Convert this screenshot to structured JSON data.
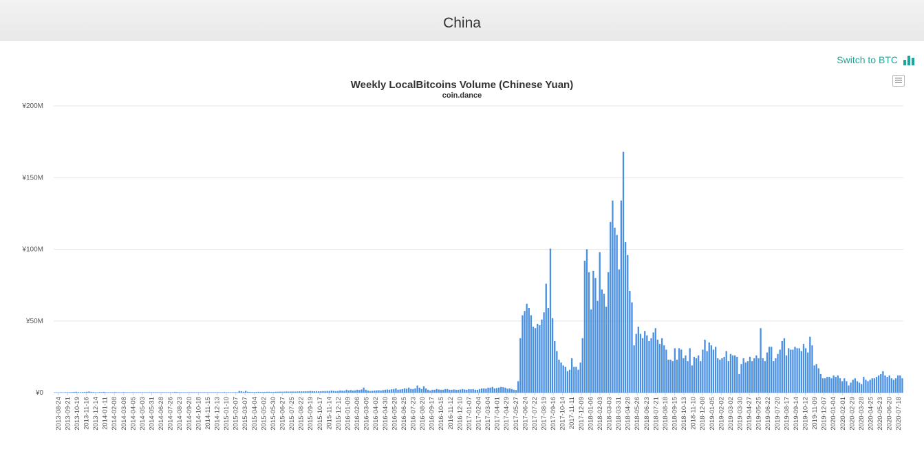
{
  "header": {
    "title": "China"
  },
  "toolbar": {
    "switch_label": "Switch to BTC",
    "switch_icon": "bar-chart-icon",
    "menu_icon": "hamburger-menu-icon"
  },
  "colors": {
    "accent": "#1aa69a",
    "bar": "#4a90e2",
    "grid": "#e6e6e6"
  },
  "chart_data": {
    "type": "bar",
    "title": "Weekly LocalBitcoins Volume (Chinese Yuan)",
    "subtitle": "coin.dance",
    "ylim": [
      0,
      200
    ],
    "y_unit": "millions CNY",
    "y_tick_values": [
      0,
      50,
      100,
      150,
      200
    ],
    "y_tick_labels": [
      "¥0",
      "¥50M",
      "¥100M",
      "¥150M",
      "¥200M"
    ],
    "x_start": "2013-08-24",
    "x_end": "2020-07-18",
    "x_tick_labels": [
      "2013-08-24",
      "2013-09-21",
      "2013-10-19",
      "2013-11-16",
      "2013-12-14",
      "2014-01-11",
      "2014-02-08",
      "2014-03-08",
      "2014-04-05",
      "2014-05-03",
      "2014-05-31",
      "2014-06-28",
      "2014-07-26",
      "2014-08-23",
      "2014-09-20",
      "2014-10-18",
      "2014-11-15",
      "2014-12-13",
      "2015-01-10",
      "2015-02-07",
      "2015-03-07",
      "2015-04-04",
      "2015-05-02",
      "2015-05-30",
      "2015-06-27",
      "2015-07-25",
      "2015-08-22",
      "2015-09-19",
      "2015-10-17",
      "2015-11-14",
      "2015-12-12",
      "2016-01-09",
      "2016-02-06",
      "2016-03-05",
      "2016-04-02",
      "2016-04-30",
      "2016-05-28",
      "2016-06-25",
      "2016-07-23",
      "2016-08-20",
      "2016-09-17",
      "2016-10-15",
      "2016-11-12",
      "2016-12-10",
      "2017-01-07",
      "2017-02-04",
      "2017-03-04",
      "2017-04-01",
      "2017-04-29",
      "2017-05-27",
      "2017-06-24",
      "2017-07-22",
      "2017-08-19",
      "2017-09-16",
      "2017-10-14",
      "2017-11-11",
      "2017-12-09",
      "2018-01-06",
      "2018-02-03",
      "2018-03-03",
      "2018-03-31",
      "2018-04-28",
      "2018-05-26",
      "2018-06-23",
      "2018-07-21",
      "2018-08-18",
      "2018-09-15",
      "2018-10-13",
      "2018-11-10",
      "2018-12-08",
      "2019-01-05",
      "2019-02-02",
      "2019-03-02",
      "2019-03-30",
      "2019-04-27",
      "2019-05-25",
      "2019-06-22",
      "2019-07-20",
      "2019-08-17",
      "2019-09-14",
      "2019-10-12",
      "2019-11-09",
      "2019-12-07",
      "2020-01-04",
      "2020-02-01",
      "2020-02-29",
      "2020-03-28",
      "2020-04-25",
      "2020-05-23",
      "2020-06-20",
      "2020-07-18"
    ],
    "values": [
      0.2,
      0.2,
      0.2,
      0.3,
      0.2,
      0.3,
      0.3,
      0.3,
      0.4,
      0.5,
      0.6,
      0.4,
      0.3,
      0.4,
      0.5,
      0.6,
      0.8,
      0.5,
      0.4,
      0.3,
      0.3,
      0.4,
      0.4,
      0.5,
      0.3,
      0.3,
      0.3,
      0.3,
      0.4,
      0.3,
      0.3,
      0.3,
      0.4,
      0.3,
      0.3,
      0.3,
      0.3,
      0.3,
      0.3,
      0.3,
      0.3,
      0.3,
      0.3,
      0.3,
      0.3,
      0.3,
      0.3,
      0.3,
      0.3,
      0.3,
      0.3,
      0.3,
      0.3,
      0.3,
      0.3,
      0.3,
      0.5,
      0.4,
      0.3,
      0.3,
      0.3,
      0.3,
      0.3,
      0.3,
      0.3,
      0.3,
      0.3,
      0.3,
      0.3,
      0.3,
      0.3,
      0.3,
      0.3,
      0.3,
      0.3,
      0.3,
      0.3,
      0.3,
      0.3,
      0.4,
      0.3,
      0.3,
      0.3,
      0.3,
      0.3,
      0.3,
      1.2,
      1.0,
      0.6,
      1.3,
      0.6,
      0.5,
      0.4,
      0.4,
      0.5,
      0.6,
      0.5,
      0.5,
      0.5,
      0.6,
      0.6,
      0.5,
      0.5,
      0.6,
      0.6,
      0.7,
      0.6,
      0.7,
      0.8,
      0.7,
      0.8,
      0.8,
      0.7,
      0.8,
      0.9,
      0.9,
      0.9,
      1.0,
      1.0,
      1.2,
      1.1,
      1.0,
      1.1,
      1.0,
      1.0,
      1.1,
      1.1,
      1.2,
      1.2,
      1.5,
      1.3,
      1.1,
      1.2,
      1.6,
      1.4,
      1.3,
      2.0,
      1.6,
      1.8,
      1.5,
      1.6,
      2.0,
      1.8,
      2.2,
      3.5,
      2.0,
      1.5,
      1.2,
      1.3,
      1.5,
      1.6,
      1.7,
      1.5,
      1.8,
      2.0,
      2.2,
      2.0,
      2.3,
      2.5,
      3.0,
      2.0,
      2.2,
      2.5,
      3.0,
      2.8,
      3.5,
      2.6,
      2.5,
      3.0,
      5.0,
      3.5,
      2.5,
      4.5,
      3.0,
      2.0,
      1.5,
      2.0,
      2.0,
      2.5,
      2.2,
      2.0,
      2.0,
      2.5,
      2.5,
      2.0,
      2.0,
      2.2,
      2.0,
      2.0,
      2.2,
      2.5,
      2.2,
      2.0,
      2.5,
      2.3,
      2.5,
      2.0,
      2.0,
      2.5,
      3.0,
      3.0,
      2.8,
      3.5,
      3.5,
      4.0,
      3.0,
      3.2,
      3.5,
      4.0,
      3.8,
      3.5,
      2.8,
      3.0,
      2.5,
      2.0,
      1.8,
      8.0,
      38.0,
      54.0,
      57.0,
      62.0,
      59.0,
      54.0,
      46.0,
      45.0,
      48.0,
      47.0,
      51.0,
      56.0,
      76.0,
      59.0,
      100.5,
      52.0,
      36.0,
      29.0,
      23.0,
      21.0,
      19.0,
      18.0,
      15.0,
      16.0,
      24.0,
      18.0,
      18.0,
      16.0,
      21.0,
      38.0,
      92.0,
      100.0,
      84.0,
      58.0,
      85.0,
      80.0,
      64.0,
      98.0,
      72.0,
      69.0,
      60.0,
      84.0,
      119.0,
      134.0,
      115.0,
      110.0,
      86.0,
      134.0,
      168.0,
      105.0,
      96.0,
      71.0,
      63.0,
      33.0,
      41.0,
      46.0,
      41.0,
      38.0,
      43.0,
      40.0,
      36.0,
      38.0,
      42.0,
      45.0,
      37.0,
      34.0,
      38.0,
      33.0,
      30.0,
      23.0,
      23.0,
      22.0,
      31.0,
      23.0,
      31.0,
      30.0,
      24.0,
      26.0,
      22.0,
      31.0,
      19.0,
      25.0,
      24.0,
      26.0,
      22.0,
      30.0,
      37.0,
      29.0,
      35.0,
      33.0,
      30.0,
      32.0,
      24.0,
      23.0,
      24.0,
      25.0,
      29.0,
      22.0,
      27.0,
      26.0,
      26.0,
      25.0,
      13.0,
      20.0,
      24.0,
      21.0,
      22.0,
      25.0,
      22.0,
      24.0,
      26.0,
      24.0,
      45.0,
      24.0,
      22.0,
      28.0,
      32.0,
      32.0,
      22.0,
      24.0,
      27.0,
      30.0,
      36.0,
      38.0,
      26.0,
      31.0,
      30.0,
      30.0,
      32.0,
      31.0,
      31.0,
      29.0,
      34.0,
      31.0,
      28.0,
      39.0,
      33.0,
      19.0,
      20.0,
      17.0,
      13.0,
      10.0,
      10.0,
      11.0,
      11.0,
      10.0,
      12.0,
      11.0,
      12.0,
      10.0,
      8.0,
      10.0,
      8.0,
      5.0,
      7.0,
      9.0,
      10.0,
      8.0,
      7.0,
      6.0,
      11.0,
      9.0,
      8.0,
      9.0,
      10.0,
      10.0,
      11.0,
      12.0,
      13.0,
      15.0,
      12.0,
      11.0,
      12.0,
      10.0,
      9.0,
      10.0,
      12.0,
      12.0,
      10.0
    ]
  }
}
